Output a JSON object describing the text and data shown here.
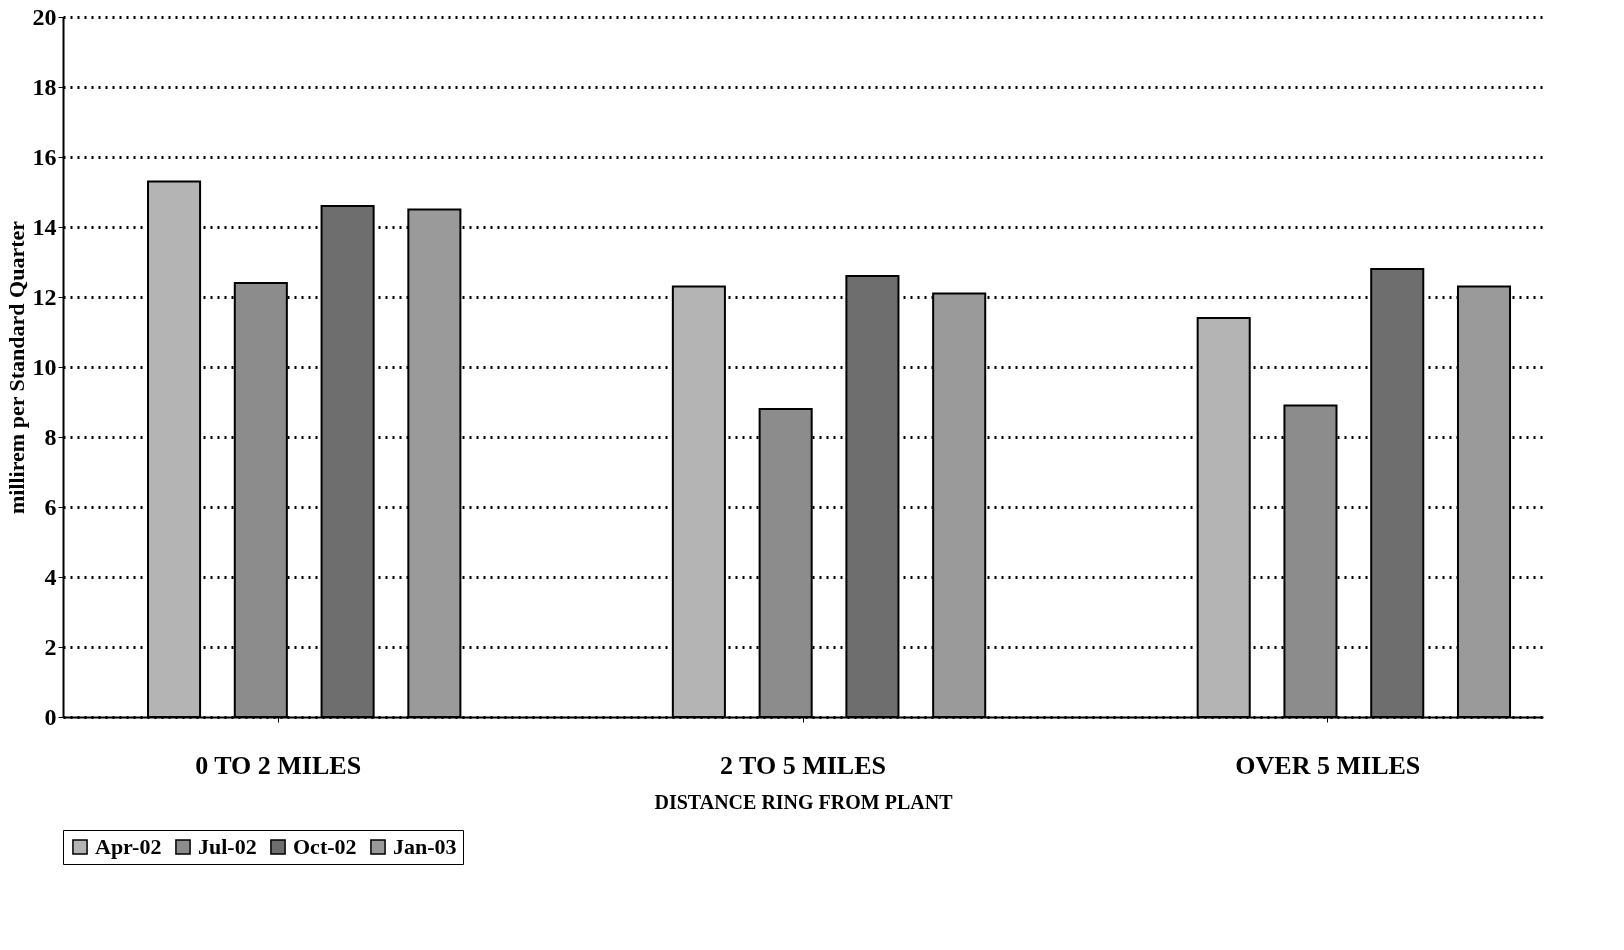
{
  "chart_data": {
    "type": "bar",
    "xlabel": "DISTANCE RING FROM PLANT",
    "ylabel": "millirem per Standard Quarter",
    "categories": [
      "0 TO 2 MILES",
      "2 TO 5 MILES",
      "OVER 5 MILES"
    ],
    "series": [
      {
        "name": "Apr-02",
        "color": "#b4b4b4",
        "values": [
          15.3,
          12.3,
          11.4
        ]
      },
      {
        "name": "Jul-02",
        "color": "#8c8c8c",
        "values": [
          12.4,
          8.8,
          8.9
        ]
      },
      {
        "name": "Oct-02",
        "color": "#6e6e6e",
        "values": [
          14.6,
          12.6,
          12.8
        ]
      },
      {
        "name": "Jan-03",
        "color": "#9a9a9a",
        "values": [
          14.5,
          12.1,
          12.3
        ]
      }
    ],
    "ylim": [
      0,
      20
    ],
    "yticks": [
      0,
      2,
      4,
      6,
      8,
      10,
      12,
      14,
      16,
      18,
      20
    ],
    "grid": "y",
    "legend": "bottom"
  }
}
